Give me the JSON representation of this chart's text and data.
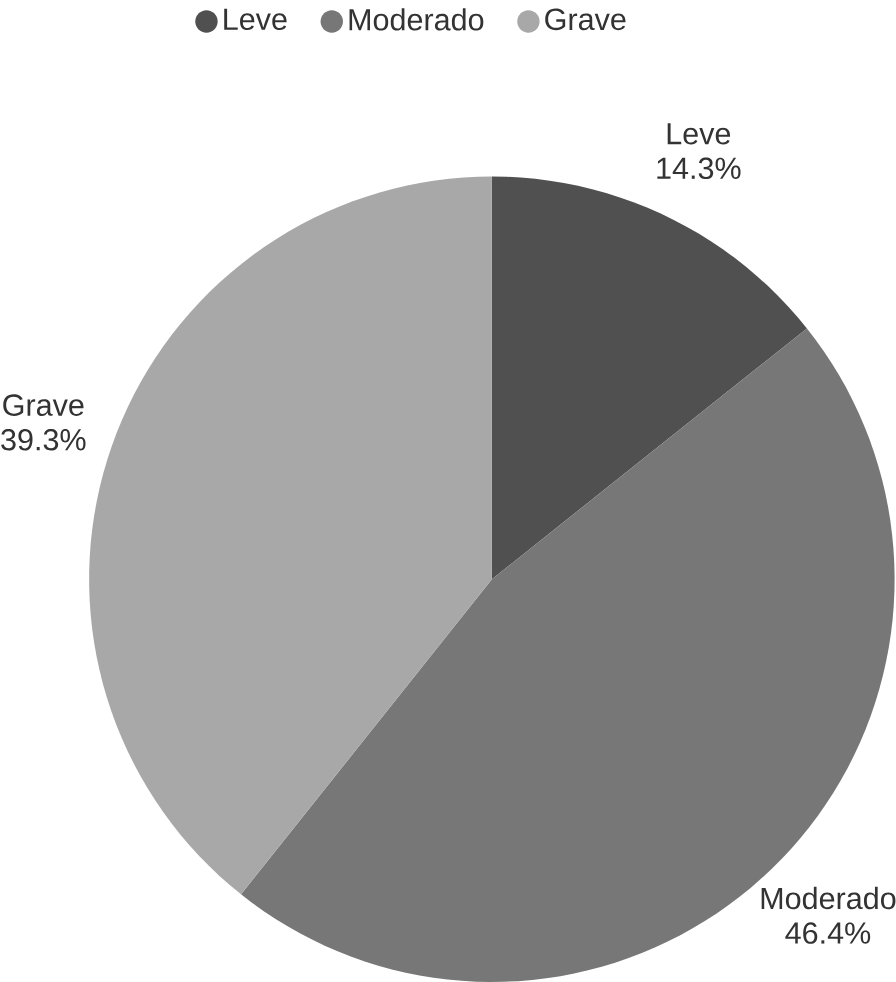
{
  "chart_data": {
    "type": "pie",
    "categories": [
      "Leve",
      "Moderado",
      "Grave"
    ],
    "values": [
      14.3,
      46.4,
      39.3
    ],
    "value_labels": [
      "14.3%",
      "46.4%",
      "39.3%"
    ],
    "colors": [
      "#505050",
      "#777777",
      "#a8a8a8"
    ],
    "legend": "top"
  }
}
